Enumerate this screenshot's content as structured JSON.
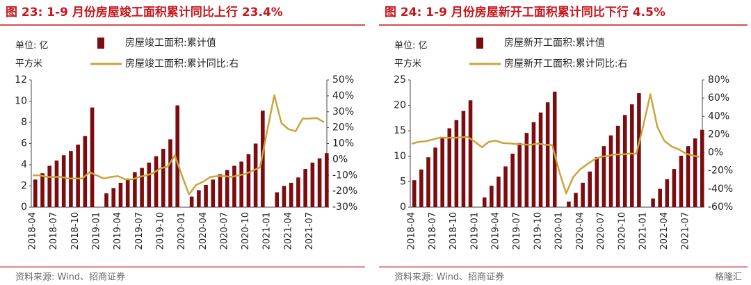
{
  "chart_data": [
    {
      "type": "bar-line",
      "title": "图 23:  1-9 月份房屋竣工面积累计同比上行 23.4%",
      "y_label": [
        "单位:  亿",
        "平方米"
      ],
      "categories": [
        "2018-04",
        null,
        null,
        "2018-07",
        null,
        null,
        "2018-10",
        null,
        null,
        "2019-01",
        null,
        null,
        "2019-04",
        null,
        null,
        "2019-07",
        null,
        null,
        "2019-10",
        null,
        null,
        "2020-01",
        null,
        null,
        "2020-04",
        null,
        null,
        "2020-07",
        null,
        null,
        "2020-10",
        null,
        null,
        "2021-01",
        null,
        null,
        "2021-04",
        null,
        null,
        "2021-07",
        null,
        null
      ],
      "ylim": [
        0,
        12
      ],
      "yticks": [
        0,
        2,
        4,
        6,
        8,
        10,
        12
      ],
      "y2lim": [
        -30,
        50
      ],
      "y2ticks": [
        {
          "value": -30,
          "label": "-30%"
        },
        {
          "value": -20,
          "label": "-20%"
        },
        {
          "value": -10,
          "label": "-10%"
        },
        {
          "value": 0,
          "label": "0%"
        },
        {
          "value": 10,
          "label": "10%"
        },
        {
          "value": 20,
          "label": "20%"
        },
        {
          "value": 30,
          "label": "30%"
        },
        {
          "value": 40,
          "label": "40%"
        },
        {
          "value": 50,
          "label": "50%"
        }
      ],
      "series": [
        {
          "name": "房屋竣工面积:累计值",
          "color": "#7b0c10",
          "kind": "bar",
          "values": [
            2.6,
            3.2,
            3.9,
            4.4,
            4.9,
            5.3,
            5.9,
            6.7,
            9.4,
            null,
            1.3,
            1.8,
            2.3,
            2.7,
            3.3,
            3.7,
            4.2,
            4.8,
            5.5,
            6.4,
            9.6,
            null,
            1.0,
            1.6,
            2.1,
            2.6,
            3.1,
            3.5,
            3.9,
            4.3,
            5.0,
            6.0,
            9.1,
            null,
            1.4,
            2.0,
            2.3,
            2.8,
            3.6,
            4.2,
            4.6,
            5.1
          ]
        },
        {
          "name": "房屋竣工面积:累计同比:右",
          "color": "#c8a43c",
          "kind": "line",
          "axis": "y2",
          "values": [
            -10,
            -10,
            -11,
            -11,
            -11,
            -12,
            -12,
            -12,
            -8,
            -10,
            -12,
            -11,
            -10.5,
            -12.5,
            -12.5,
            -11,
            -10,
            -8.5,
            -5.5,
            -4.5,
            2.6,
            -10,
            -22,
            -16,
            -14,
            -11,
            -10.5,
            -10.5,
            -11,
            -10,
            -9,
            -7,
            -5,
            18,
            40.4,
            22.9,
            19,
            17.8,
            25.7,
            25.7,
            26,
            23.4
          ]
        }
      ],
      "source": "资料来源:  Wind、招商证券"
    },
    {
      "type": "bar-line",
      "title": "图 24:  1-9 月份房屋新开工面积累计同比下行 4.5%",
      "y_label": [
        "单位:  亿",
        "平方米"
      ],
      "categories": [
        "2018-04",
        null,
        null,
        "2018-07",
        null,
        null,
        "2018-10",
        null,
        null,
        "2019-01",
        null,
        null,
        "2019-04",
        null,
        null,
        "2019-07",
        null,
        null,
        "2019-10",
        null,
        null,
        "2020-01",
        null,
        null,
        "2020-04",
        null,
        null,
        "2020-07",
        null,
        null,
        "2020-10",
        null,
        null,
        "2021-01",
        null,
        null,
        "2021-04",
        null,
        null,
        "2021-07",
        null,
        null
      ],
      "ylim": [
        0,
        25
      ],
      "yticks": [
        0,
        5,
        10,
        15,
        20,
        25
      ],
      "y2lim": [
        -60,
        80
      ],
      "y2ticks": [
        {
          "value": -60,
          "label": "-60%"
        },
        {
          "value": -40,
          "label": "-40%"
        },
        {
          "value": -20,
          "label": "-20%"
        },
        {
          "value": 0,
          "label": "0%"
        },
        {
          "value": 20,
          "label": "20%"
        },
        {
          "value": 40,
          "label": "40%"
        },
        {
          "value": 60,
          "label": "60%"
        },
        {
          "value": 80,
          "label": "80%"
        }
      ],
      "series": [
        {
          "name": "房屋新开工面积:累计值",
          "color": "#7b0c10",
          "kind": "bar",
          "values": [
            5.3,
            7.4,
            9.8,
            11.7,
            13.6,
            15.5,
            17.1,
            18.9,
            21.0,
            null,
            1.9,
            4.2,
            6.0,
            8.0,
            10.5,
            12.6,
            14.6,
            16.7,
            18.6,
            20.6,
            22.7,
            null,
            1.1,
            2.8,
            4.8,
            7.0,
            9.8,
            12.0,
            14.1,
            16.0,
            18.1,
            20.2,
            22.4,
            null,
            1.7,
            3.6,
            5.5,
            7.5,
            10.1,
            12.0,
            13.5,
            15.2
          ]
        },
        {
          "name": "房屋新开工面积:累计同比:右",
          "color": "#c8a43c",
          "kind": "line",
          "axis": "y2",
          "values": [
            9.7,
            11.8,
            12.5,
            14.4,
            16.6,
            16.4,
            16.3,
            16.8,
            17.2,
            12,
            6,
            11.9,
            13.1,
            10.5,
            10.1,
            9.5,
            8.9,
            8.6,
            10.0,
            8.6,
            8.5,
            -20,
            -44.9,
            -27.2,
            -18.4,
            -12.8,
            -7.6,
            -4.5,
            -3.6,
            -1.9,
            -2.0,
            -1.0,
            -1.2,
            30,
            64.3,
            28.2,
            12.8,
            6.9,
            3.8,
            -0.9,
            -3.2,
            -4.5
          ]
        }
      ],
      "source": "资料来源:  Wind、招商证券",
      "watermark": "格隆汇"
    }
  ]
}
